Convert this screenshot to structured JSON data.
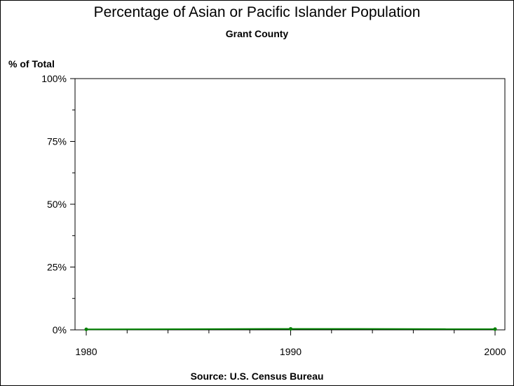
{
  "chart_data": {
    "type": "line",
    "title": "Percentage of Asian or Pacific Islander Population",
    "subtitle": "Grant County",
    "ylabel": "% of Total",
    "xlabel": "",
    "source": "Source: U.S. Census Bureau",
    "x": [
      1980,
      1990,
      2000
    ],
    "x_ticks": [
      "1980",
      "1990",
      "2000"
    ],
    "y_ticks": [
      "0%",
      "25%",
      "50%",
      "75%",
      "100%"
    ],
    "xlim": [
      1980,
      2000
    ],
    "ylim": [
      0,
      100
    ],
    "grid": false,
    "series": [
      {
        "values": [
          0.2,
          0.4,
          0.3
        ],
        "color": "#008000"
      }
    ]
  }
}
